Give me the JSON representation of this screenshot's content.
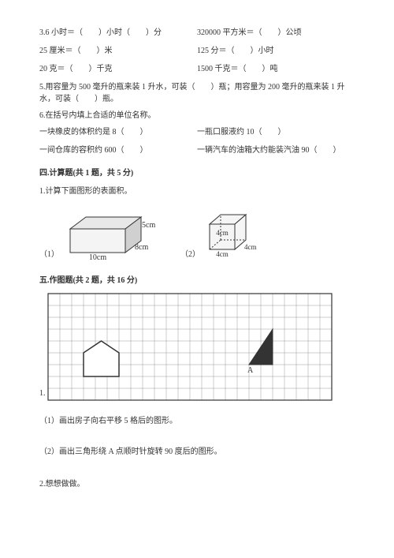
{
  "conversions": [
    {
      "left": "3.6 小时＝（　　）小时（　　）分",
      "right": "320000 平方米＝（　　）公顷"
    },
    {
      "left": "25 厘米＝（　　）米",
      "right": "125 分＝（　　）小时"
    },
    {
      "left": "20 克＝（　　）千克",
      "right": "1500 千克＝（　　）吨"
    }
  ],
  "q5": "5.用容量为 500 毫升的瓶来装 1 升水，可装（　　）瓶；用容量为 200 毫升的瓶来装 1 升水，可装（　　）瓶。",
  "q6": "6.在括号内填上合适的单位名称。",
  "q6_items": [
    {
      "left": "一块橡皮的体积约是 8（　　）",
      "right": "一瓶口服液约 10（　　）"
    },
    {
      "left": "一间仓库的容积约 600（　　）",
      "right": "一辆汽车的油箱大约能装汽油 90（　　）"
    }
  ],
  "sec4_title": "四.计算题(共 1 题，共 5 分)",
  "sec4_q1": "1.计算下面图形的表面积。",
  "fig1": {
    "label": "（1）",
    "w": "10cm",
    "d": "8cm",
    "h": "5cm",
    "topFill": "#e8e8e8",
    "sideFill": "#d0d0d0",
    "frontFill": "#f4f4f4",
    "stroke": "#333333"
  },
  "fig2": {
    "label": "（2）",
    "w": "4cm",
    "d": "4cm",
    "h": "4cm",
    "fill": "#f5f5f5",
    "stroke": "#333333"
  },
  "sec5_title": "五.作图题(共 2 题，共 16 分)",
  "sec5_q1num": "1.",
  "grid": {
    "cols": 24,
    "rows": 9,
    "cell": 15,
    "stroke": "#999999",
    "border": "#333333",
    "house_fill": "#ffffff",
    "house_stroke": "#333333",
    "tri_fill": "#333333",
    "tri_label": "A"
  },
  "sec5_sub1": "（1）画出房子向右平移 5 格后的图形。",
  "sec5_sub2": "（2）画出三角形绕 A 点顺时针旋转 90 度后的图形。",
  "sec5_q2": "2.想想做做。"
}
